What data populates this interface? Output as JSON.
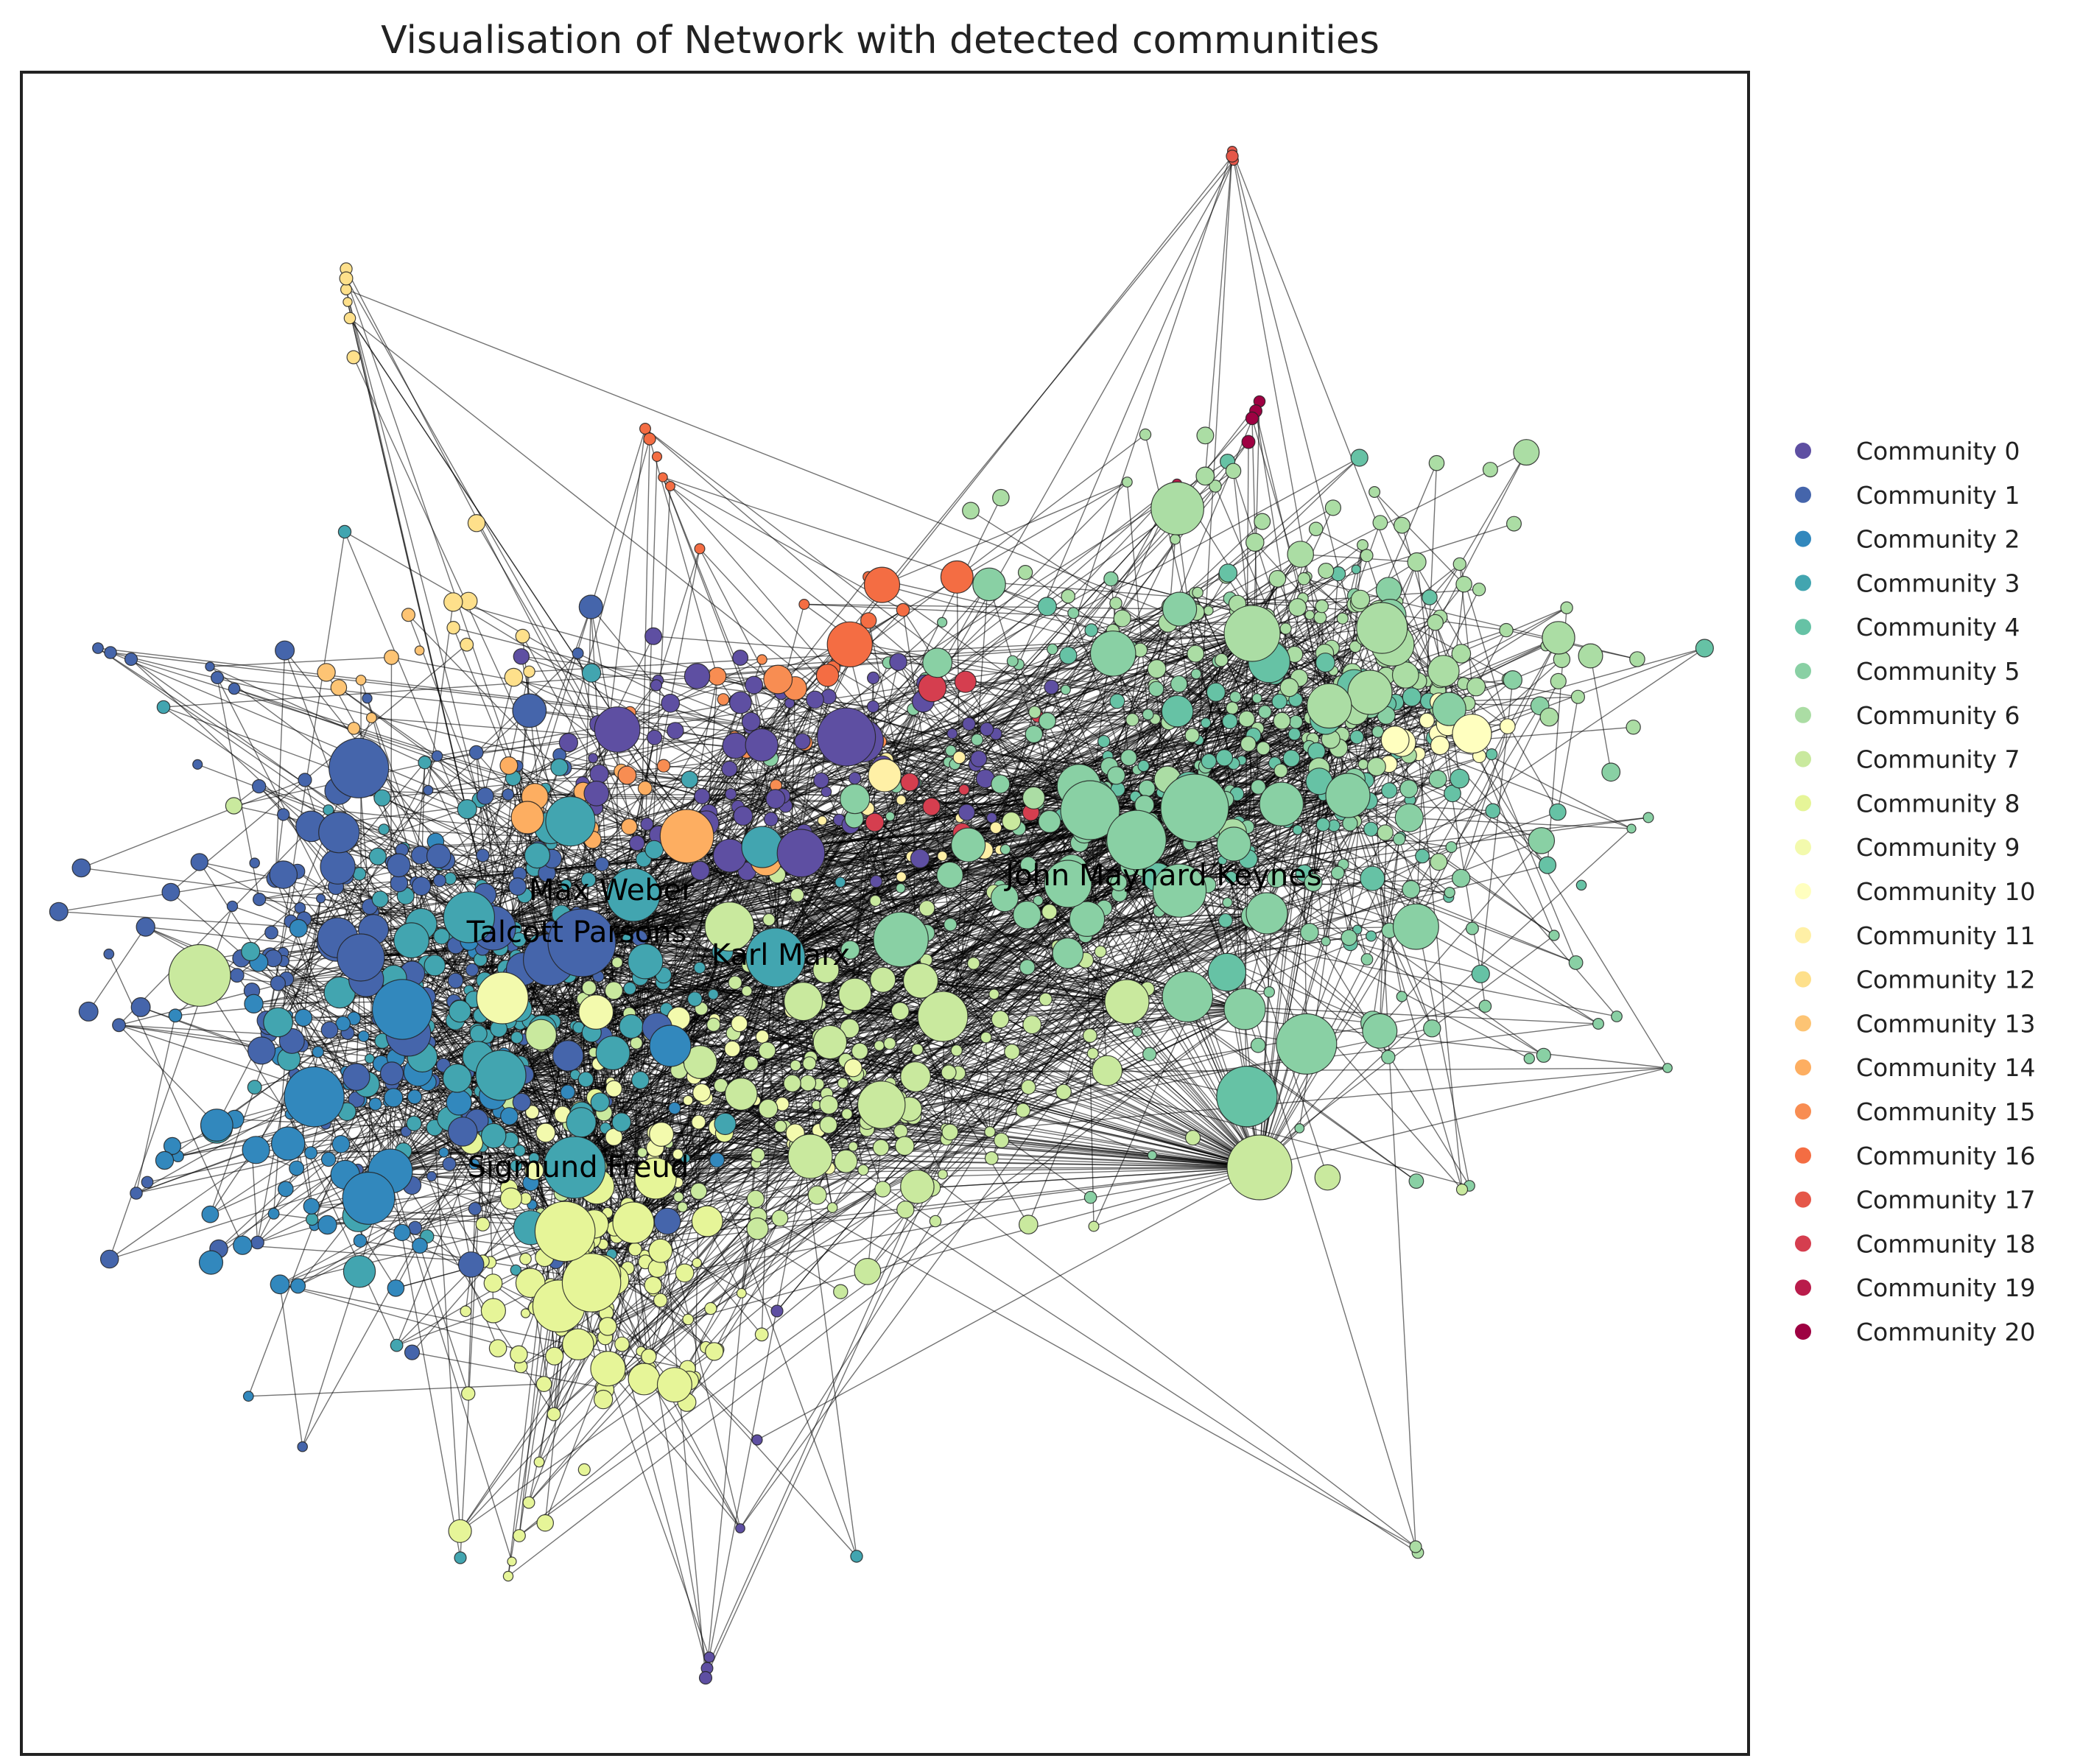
{
  "title": "Visualisation of Network with detected communities",
  "communities": [
    {
      "label": "Community 0",
      "color": "#5e4fa2"
    },
    {
      "label": "Community 1",
      "color": "#4565ab"
    },
    {
      "label": "Community 2",
      "color": "#3288bd"
    },
    {
      "label": "Community 3",
      "color": "#42a5b0"
    },
    {
      "label": "Community 4",
      "color": "#66c2a5"
    },
    {
      "label": "Community 5",
      "color": "#89d0a4"
    },
    {
      "label": "Community 6",
      "color": "#abdda4"
    },
    {
      "label": "Community 7",
      "color": "#c9e99e"
    },
    {
      "label": "Community 8",
      "color": "#e6f598"
    },
    {
      "label": "Community 9",
      "color": "#f3faad"
    },
    {
      "label": "Community 10",
      "color": "#ffffbf"
    },
    {
      "label": "Community 11",
      "color": "#fff0a6"
    },
    {
      "label": "Community 12",
      "color": "#fee08b"
    },
    {
      "label": "Community 13",
      "color": "#fdc474"
    },
    {
      "label": "Community 14",
      "color": "#fdae61"
    },
    {
      "label": "Community 15",
      "color": "#f88d52"
    },
    {
      "label": "Community 16",
      "color": "#f46d43"
    },
    {
      "label": "Community 17",
      "color": "#e55749"
    },
    {
      "label": "Community 18",
      "color": "#d53e4f"
    },
    {
      "label": "Community 19",
      "color": "#b91c4b"
    },
    {
      "label": "Community 20",
      "color": "#9e0142"
    }
  ],
  "labeled_nodes": [
    {
      "name": "Max Weber"
    },
    {
      "name": "Talcott Parsons"
    },
    {
      "name": "Karl Marx"
    },
    {
      "name": "John Maynard Keynes"
    },
    {
      "name": "Sigmund Freud"
    }
  ]
}
